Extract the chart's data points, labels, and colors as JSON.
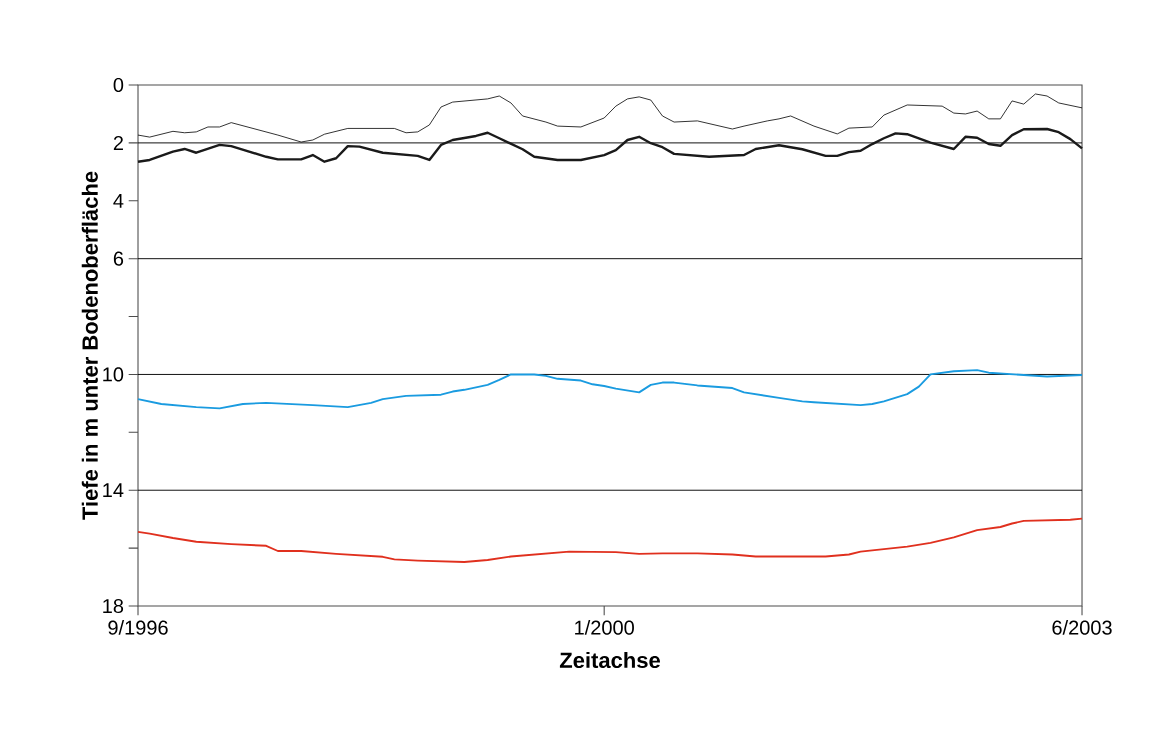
{
  "chart_data": {
    "type": "line",
    "xlabel": "Zeitachse",
    "ylabel": "Tiefe in m unter Bodenoberfläche",
    "xlim": [
      "1996-09",
      "2003-06"
    ],
    "xticks": [
      {
        "value": "1996-09",
        "label": "9/1996"
      },
      {
        "value": "2000-01",
        "label": "1/2000"
      },
      {
        "value": "2003-06",
        "label": "6/2003"
      }
    ],
    "ylim": [
      18,
      0
    ],
    "yticks": [
      0,
      2,
      4,
      6,
      {
        "value": 8,
        "label": null
      },
      10,
      {
        "value": 12,
        "label": null
      },
      14,
      {
        "value": 16,
        "label": null
      },
      18
    ],
    "grid": false,
    "marker": "none",
    "line_style": "solid",
    "ref_lines": [
      {
        "axis": "y",
        "value": 2,
        "color": "#000000"
      },
      {
        "axis": "y",
        "value": 6,
        "color": "#000000"
      },
      {
        "axis": "y",
        "value": 10,
        "color": "#000000"
      },
      {
        "axis": "y",
        "value": 14,
        "color": "#000000"
      }
    ],
    "series": [
      {
        "color": "#000000",
        "x": [
          "1996-09",
          "1996-10",
          "1996-12",
          "1997-01",
          "1997-02",
          "1997-03",
          "1997-04",
          "1997-05",
          "1997-09",
          "1997-11",
          "1997-12",
          "1998-01",
          "1998-03",
          "1998-07",
          "1998-08",
          "1998-09",
          "1998-10",
          "1998-11",
          "1998-12",
          "1999-03",
          "1999-04",
          "1999-05",
          "1999-06",
          "1999-08",
          "1999-09",
          "1999-11",
          "2000-01",
          "2000-02",
          "2000-03",
          "2000-04",
          "2000-05",
          "2000-06",
          "2000-07",
          "2000-09",
          "2000-12",
          "2001-01",
          "2001-03",
          "2001-04",
          "2001-05",
          "2001-07",
          "2001-09",
          "2001-10",
          "2001-12",
          "2002-01",
          "2002-03",
          "2002-06",
          "2002-07",
          "2002-08",
          "2002-09",
          "2002-10",
          "2002-11",
          "2002-12",
          "2003-01",
          "2003-02",
          "2003-03",
          "2003-04",
          "2003-06"
        ],
        "values": [
          1.73,
          1.8,
          1.6,
          1.65,
          1.62,
          1.45,
          1.45,
          1.3,
          1.73,
          1.97,
          1.9,
          1.7,
          1.5,
          1.5,
          1.65,
          1.62,
          1.38,
          0.76,
          0.59,
          0.48,
          0.38,
          0.62,
          1.07,
          1.28,
          1.42,
          1.45,
          1.14,
          0.73,
          0.48,
          0.41,
          0.52,
          1.07,
          1.28,
          1.24,
          1.52,
          1.42,
          1.24,
          1.17,
          1.07,
          1.42,
          1.69,
          1.49,
          1.45,
          1.04,
          0.69,
          0.73,
          0.97,
          1.0,
          0.9,
          1.17,
          1.17,
          0.55,
          0.66,
          0.31,
          0.38,
          0.62,
          0.79
        ]
      },
      {
        "color": "#1a1a1a",
        "x": [
          "1996-09",
          "1996-10",
          "1996-12",
          "1997-01",
          "1997-02",
          "1997-04",
          "1997-05",
          "1997-08",
          "1997-09",
          "1997-11",
          "1997-12",
          "1998-01",
          "1998-02",
          "1998-03",
          "1998-04",
          "1998-06",
          "1998-09",
          "1998-10",
          "1998-11",
          "1998-12",
          "1999-02",
          "1999-03",
          "1999-04",
          "1999-06",
          "1999-07",
          "1999-09",
          "1999-11",
          "2000-01",
          "2000-02",
          "2000-03",
          "2000-04",
          "2000-05",
          "2000-06",
          "2000-07",
          "2000-10",
          "2001-01",
          "2001-02",
          "2001-04",
          "2001-06",
          "2001-08",
          "2001-09",
          "2001-10",
          "2001-11",
          "2001-12",
          "2002-01",
          "2002-02",
          "2002-03",
          "2002-05",
          "2002-07",
          "2002-08",
          "2002-09",
          "2002-10",
          "2002-11",
          "2002-12",
          "2003-01",
          "2003-03",
          "2003-04",
          "2003-05",
          "2003-06"
        ],
        "values": [
          2.65,
          2.59,
          2.3,
          2.21,
          2.34,
          2.07,
          2.11,
          2.48,
          2.57,
          2.57,
          2.42,
          2.65,
          2.53,
          2.11,
          2.13,
          2.34,
          2.45,
          2.59,
          2.07,
          1.9,
          1.76,
          1.65,
          1.84,
          2.22,
          2.48,
          2.59,
          2.59,
          2.42,
          2.25,
          1.9,
          1.79,
          2.01,
          2.15,
          2.38,
          2.48,
          2.42,
          2.21,
          2.08,
          2.22,
          2.45,
          2.45,
          2.32,
          2.27,
          2.04,
          1.84,
          1.67,
          1.7,
          1.99,
          2.21,
          1.79,
          1.82,
          2.04,
          2.1,
          1.73,
          1.53,
          1.52,
          1.63,
          1.87,
          2.19
        ]
      },
      {
        "color": "#1a9be0",
        "x": [
          "1996-09",
          "1996-11",
          "1997-02",
          "1997-04",
          "1997-06",
          "1997-08",
          "1997-12",
          "1998-03",
          "1998-05",
          "1998-06",
          "1998-08",
          "1998-11",
          "1998-12",
          "1999-01",
          "1999-03",
          "1999-04",
          "1999-05",
          "1999-07",
          "1999-08",
          "1999-09",
          "1999-11",
          "1999-12",
          "2000-01",
          "2000-02",
          "2000-04",
          "2000-05",
          "2000-06",
          "2000-07",
          "2000-09",
          "2000-12",
          "2001-01",
          "2001-04",
          "2001-06",
          "2001-07",
          "2001-11",
          "2001-12",
          "2002-01",
          "2002-03",
          "2002-04",
          "2002-05",
          "2002-07",
          "2002-09",
          "2002-10",
          "2003-01",
          "2003-03",
          "2003-06"
        ],
        "values": [
          10.85,
          11.02,
          11.13,
          11.17,
          11.02,
          10.98,
          11.06,
          11.13,
          10.98,
          10.85,
          10.74,
          10.7,
          10.59,
          10.53,
          10.36,
          10.19,
          10.0,
          10.0,
          10.05,
          10.15,
          10.21,
          10.34,
          10.4,
          10.49,
          10.62,
          10.36,
          10.28,
          10.28,
          10.38,
          10.47,
          10.62,
          10.81,
          10.93,
          10.96,
          11.06,
          11.02,
          10.93,
          10.68,
          10.42,
          10.0,
          9.89,
          9.85,
          9.94,
          10.02,
          10.07,
          10.02
        ]
      },
      {
        "color": "#e0301e",
        "x": [
          "1996-09",
          "1996-10",
          "1996-12",
          "1997-02",
          "1997-05",
          "1997-08",
          "1997-09",
          "1997-11",
          "1998-02",
          "1998-06",
          "1998-07",
          "1998-09",
          "1999-01",
          "1999-03",
          "1999-05",
          "1999-10",
          "2000-02",
          "2000-04",
          "2000-06",
          "2000-09",
          "2000-12",
          "2001-02",
          "2001-08",
          "2001-10",
          "2001-11",
          "2002-03",
          "2002-05",
          "2002-07",
          "2002-09",
          "2002-11",
          "2002-12",
          "2003-01",
          "2003-05",
          "2003-06"
        ],
        "values": [
          15.44,
          15.5,
          15.65,
          15.78,
          15.86,
          15.92,
          16.1,
          16.1,
          16.2,
          16.3,
          16.39,
          16.43,
          16.48,
          16.41,
          16.29,
          16.12,
          16.14,
          16.2,
          16.18,
          16.18,
          16.22,
          16.29,
          16.29,
          16.22,
          16.12,
          15.95,
          15.82,
          15.63,
          15.38,
          15.27,
          15.15,
          15.06,
          15.02,
          14.98
        ]
      }
    ]
  }
}
